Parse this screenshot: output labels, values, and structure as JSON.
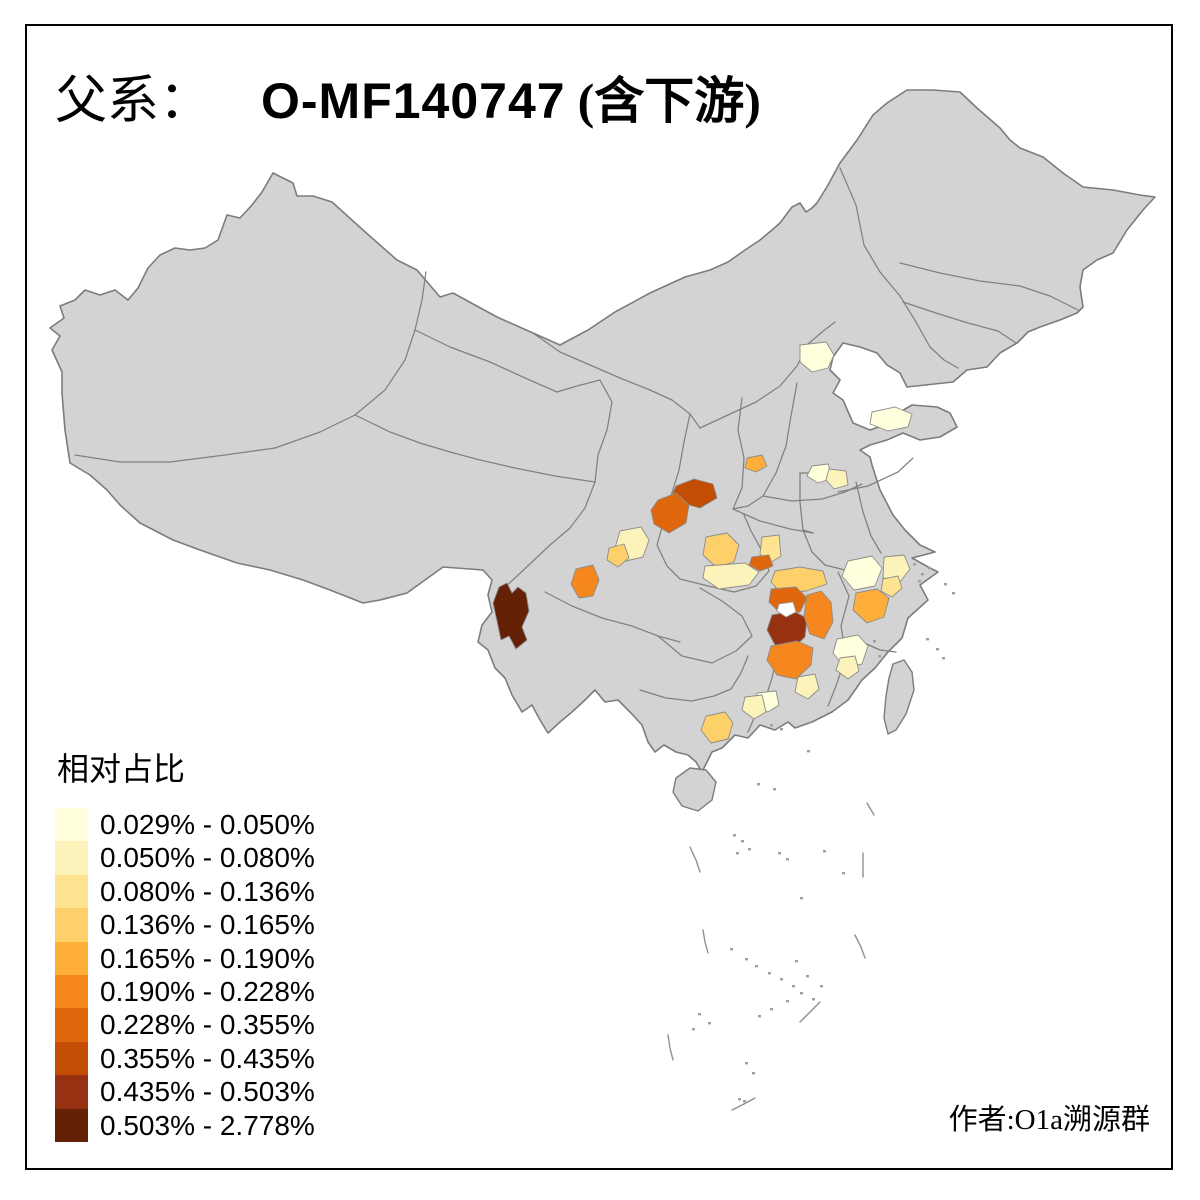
{
  "title": {
    "prefix": "父系：",
    "haplogroup": "O-MF140747",
    "suffix": "(含下游)"
  },
  "attribution": "作者:O1a溯源群",
  "legend": {
    "title": "相对占比",
    "bins": [
      {
        "label": "0.029% - 0.050%",
        "color": "#FFFFDE"
      },
      {
        "label": "0.050% - 0.080%",
        "color": "#FBF3B9"
      },
      {
        "label": "0.080% - 0.136%",
        "color": "#FEE391"
      },
      {
        "label": "0.136% - 0.165%",
        "color": "#FDD06A"
      },
      {
        "label": "0.165% - 0.190%",
        "color": "#FDAE3B"
      },
      {
        "label": "0.190% - 0.228%",
        "color": "#F5871E"
      },
      {
        "label": "0.228% - 0.355%",
        "color": "#E0660C"
      },
      {
        "label": "0.355% - 0.435%",
        "color": "#C24D03"
      },
      {
        "label": "0.435% - 0.503%",
        "color": "#963111"
      },
      {
        "label": "0.503% - 2.778%",
        "color": "#642106"
      }
    ]
  },
  "map": {
    "land_color": "#D3D3D3",
    "border_color": "#7C7C7C",
    "sea_color": "#FFFFFF",
    "lake_color": "#FFFFFF",
    "regions": [
      {
        "bin": 1,
        "points": [
          [
            800,
            345
          ],
          [
            826,
            342
          ],
          [
            834,
            355
          ],
          [
            828,
            368
          ],
          [
            812,
            372
          ],
          [
            800,
            362
          ]
        ]
      },
      {
        "bin": 1,
        "points": [
          [
            872,
            412
          ],
          [
            895,
            407
          ],
          [
            912,
            414
          ],
          [
            908,
            427
          ],
          [
            888,
            431
          ],
          [
            870,
            424
          ]
        ]
      },
      {
        "bin": 5,
        "points": [
          [
            747,
            458
          ],
          [
            762,
            455
          ],
          [
            767,
            466
          ],
          [
            756,
            472
          ],
          [
            745,
            468
          ]
        ]
      },
      {
        "bin": 1,
        "points": [
          [
            812,
            466
          ],
          [
            828,
            464
          ],
          [
            833,
            478
          ],
          [
            818,
            483
          ],
          [
            807,
            476
          ]
        ]
      },
      {
        "bin": 2,
        "points": [
          [
            829,
            469
          ],
          [
            846,
            471
          ],
          [
            848,
            485
          ],
          [
            834,
            489
          ],
          [
            826,
            480
          ]
        ]
      },
      {
        "bin": 8,
        "points": [
          [
            676,
            486
          ],
          [
            694,
            479
          ],
          [
            713,
            484
          ],
          [
            717,
            498
          ],
          [
            700,
            508
          ],
          [
            682,
            503
          ],
          [
            672,
            495
          ]
        ]
      },
      {
        "bin": 7,
        "points": [
          [
            658,
            500
          ],
          [
            676,
            493
          ],
          [
            689,
            505
          ],
          [
            686,
            523
          ],
          [
            669,
            533
          ],
          [
            654,
            524
          ],
          [
            651,
            510
          ]
        ]
      },
      {
        "bin": 2,
        "points": [
          [
            620,
            531
          ],
          [
            641,
            527
          ],
          [
            649,
            540
          ],
          [
            643,
            557
          ],
          [
            626,
            561
          ],
          [
            615,
            548
          ]
        ]
      },
      {
        "bin": 4,
        "points": [
          [
            609,
            548
          ],
          [
            624,
            544
          ],
          [
            629,
            558
          ],
          [
            618,
            567
          ],
          [
            607,
            560
          ]
        ]
      },
      {
        "bin": 4,
        "points": [
          [
            706,
            537
          ],
          [
            727,
            533
          ],
          [
            739,
            545
          ],
          [
            734,
            562
          ],
          [
            716,
            567
          ],
          [
            703,
            555
          ]
        ]
      },
      {
        "bin": 2,
        "points": [
          [
            705,
            566
          ],
          [
            745,
            563
          ],
          [
            759,
            572
          ],
          [
            749,
            585
          ],
          [
            719,
            589
          ],
          [
            703,
            578
          ]
        ]
      },
      {
        "bin": 3,
        "points": [
          [
            762,
            537
          ],
          [
            779,
            535
          ],
          [
            781,
            556
          ],
          [
            770,
            563
          ],
          [
            760,
            554
          ]
        ]
      },
      {
        "bin": 7,
        "points": [
          [
            752,
            557
          ],
          [
            769,
            555
          ],
          [
            773,
            566
          ],
          [
            760,
            571
          ],
          [
            749,
            565
          ]
        ]
      },
      {
        "bin": 6,
        "points": [
          [
            576,
            569
          ],
          [
            593,
            565
          ],
          [
            599,
            580
          ],
          [
            593,
            596
          ],
          [
            579,
            598
          ],
          [
            571,
            584
          ]
        ]
      },
      {
        "bin": 10,
        "points": [
          [
            499,
            587
          ],
          [
            507,
            583
          ],
          [
            512,
            593
          ],
          [
            518,
            587
          ],
          [
            526,
            593
          ],
          [
            529,
            611
          ],
          [
            522,
            627
          ],
          [
            527,
            640
          ],
          [
            516,
            649
          ],
          [
            509,
            636
          ],
          [
            501,
            640
          ],
          [
            497,
            621
          ],
          [
            493,
            603
          ]
        ]
      },
      {
        "bin": 4,
        "points": [
          [
            775,
            571
          ],
          [
            800,
            567
          ],
          [
            823,
            571
          ],
          [
            827,
            584
          ],
          [
            806,
            591
          ],
          [
            781,
            593
          ],
          [
            771,
            582
          ]
        ]
      },
      {
        "bin": 7,
        "points": [
          [
            771,
            589
          ],
          [
            796,
            587
          ],
          [
            807,
            598
          ],
          [
            800,
            612
          ],
          [
            781,
            614
          ],
          [
            769,
            602
          ]
        ]
      },
      {
        "bin": 9,
        "points": [
          [
            772,
            615
          ],
          [
            793,
            611
          ],
          [
            807,
            618
          ],
          [
            805,
            637
          ],
          [
            792,
            649
          ],
          [
            775,
            645
          ],
          [
            767,
            630
          ]
        ]
      },
      {
        "bin": 6,
        "points": [
          [
            807,
            595
          ],
          [
            821,
            591
          ],
          [
            831,
            602
          ],
          [
            833,
            622
          ],
          [
            824,
            639
          ],
          [
            810,
            634
          ],
          [
            804,
            616
          ]
        ]
      },
      {
        "bin": 6,
        "points": [
          [
            771,
            646
          ],
          [
            797,
            641
          ],
          [
            813,
            648
          ],
          [
            811,
            665
          ],
          [
            796,
            679
          ],
          [
            777,
            675
          ],
          [
            767,
            660
          ]
        ]
      },
      {
        "bin": 2,
        "points": [
          [
            798,
            677
          ],
          [
            815,
            674
          ],
          [
            819,
            689
          ],
          [
            808,
            699
          ],
          [
            795,
            692
          ]
        ]
      },
      {
        "bin": 1,
        "points": [
          [
            848,
            561
          ],
          [
            872,
            556
          ],
          [
            882,
            568
          ],
          [
            875,
            586
          ],
          [
            854,
            590
          ],
          [
            842,
            576
          ]
        ]
      },
      {
        "bin": 2,
        "points": [
          [
            884,
            557
          ],
          [
            904,
            555
          ],
          [
            910,
            569
          ],
          [
            900,
            582
          ],
          [
            883,
            578
          ]
        ]
      },
      {
        "bin": 3,
        "points": [
          [
            883,
            579
          ],
          [
            898,
            576
          ],
          [
            902,
            588
          ],
          [
            892,
            597
          ],
          [
            881,
            591
          ]
        ]
      },
      {
        "bin": 5,
        "points": [
          [
            856,
            593
          ],
          [
            877,
            589
          ],
          [
            889,
            598
          ],
          [
            884,
            617
          ],
          [
            867,
            623
          ],
          [
            853,
            610
          ]
        ]
      },
      {
        "bin": 1,
        "points": [
          [
            837,
            639
          ],
          [
            858,
            635
          ],
          [
            868,
            646
          ],
          [
            862,
            664
          ],
          [
            845,
            668
          ],
          [
            833,
            653
          ]
        ]
      },
      {
        "bin": 2,
        "points": [
          [
            840,
            658
          ],
          [
            855,
            656
          ],
          [
            859,
            671
          ],
          [
            848,
            679
          ],
          [
            836,
            670
          ]
        ]
      },
      {
        "bin": 1,
        "points": [
          [
            757,
            693
          ],
          [
            776,
            691
          ],
          [
            779,
            705
          ],
          [
            768,
            712
          ],
          [
            755,
            706
          ]
        ]
      },
      {
        "bin": 2,
        "points": [
          [
            745,
            697
          ],
          [
            762,
            695
          ],
          [
            766,
            712
          ],
          [
            754,
            719
          ],
          [
            742,
            710
          ]
        ]
      },
      {
        "bin": 4,
        "points": [
          [
            706,
            716
          ],
          [
            725,
            712
          ],
          [
            733,
            723
          ],
          [
            728,
            739
          ],
          [
            711,
            743
          ],
          [
            701,
            730
          ]
        ]
      }
    ],
    "lakes": [
      {
        "points": [
          [
            779,
            604
          ],
          [
            793,
            602
          ],
          [
            796,
            612
          ],
          [
            786,
            617
          ],
          [
            777,
            611
          ]
        ]
      }
    ]
  }
}
